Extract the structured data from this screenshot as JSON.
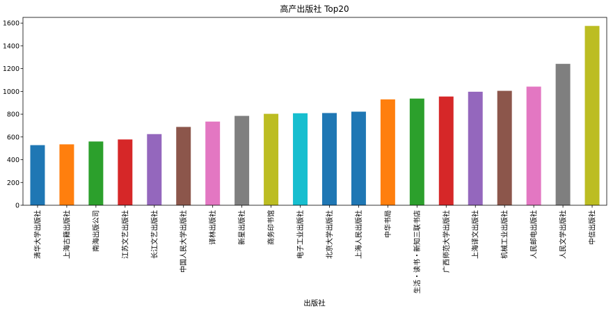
{
  "chart_data": {
    "type": "bar",
    "title": "高产出版社 Top20",
    "xlabel": "出版社",
    "ylabel": "",
    "ylim": [
      0,
      1650
    ],
    "yticks": [
      0,
      200,
      400,
      600,
      800,
      1000,
      1200,
      1400,
      1600
    ],
    "grid": false,
    "legend": "none",
    "categories": [
      "清华大学出版社",
      "上海古籍出版社",
      "南海出版公司",
      "江苏文艺出版社",
      "长江文艺出版社",
      "中国人民大学出版社",
      "译林出版社",
      "新星出版社",
      "商务印书馆",
      "电子工业出版社",
      "北京大学出版社",
      "上海人民出版社",
      "中华书局",
      "生活・读书・新知三联书店",
      "广西师范大学出版社",
      "上海译文出版社",
      "机械工业出版社",
      "人民邮电出版社",
      "人民文学出版社",
      "中信出版社"
    ],
    "values": [
      528,
      535,
      560,
      578,
      625,
      688,
      735,
      785,
      803,
      808,
      810,
      822,
      930,
      937,
      955,
      997,
      1005,
      1042,
      1242,
      1575
    ],
    "colors": [
      "#1f77b4",
      "#ff7f0e",
      "#2ca02c",
      "#d62728",
      "#9467bd",
      "#8c564b",
      "#e377c2",
      "#7f7f7f",
      "#bcbd22",
      "#17becf",
      "#1f77b4",
      "#1f77b4",
      "#ff7f0e",
      "#2ca02c",
      "#d62728",
      "#9467bd",
      "#8c564b",
      "#e377c2",
      "#7f7f7f",
      "#bcbd22"
    ]
  }
}
